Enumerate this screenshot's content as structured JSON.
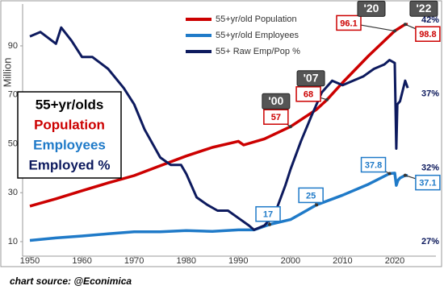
{
  "chart_data": {
    "type": "line",
    "y_label": "Million",
    "xlim": [
      1948.6,
      2027.9
    ],
    "xticks": [
      1950,
      1960,
      1970,
      1980,
      1990,
      2000,
      2010,
      2020
    ],
    "ylim": [
      4.07,
      107.1
    ],
    "yticks": [
      10,
      30,
      50,
      70,
      90
    ],
    "y2lim": [
      26.02,
      43.09
    ],
    "y2ticks": [
      {
        "value": 27,
        "label": "27%"
      },
      {
        "value": 32,
        "label": "32%"
      },
      {
        "value": 37,
        "label": "37%"
      },
      {
        "value": 42,
        "label": "42%"
      }
    ],
    "legend": "top",
    "series": [
      {
        "name": "55+yr/old Population",
        "color": "#cc0000",
        "x": [
          1950,
          1955,
          1960,
          1965,
          1970,
          1975,
          1980,
          1985,
          1990,
          1991,
          1995,
          2000,
          2005,
          2007,
          2010,
          2015,
          2020,
          2022,
          2022.5
        ],
        "values": [
          24.5,
          27.5,
          30.8,
          34,
          37,
          41,
          45,
          48.5,
          51,
          49.5,
          52,
          57,
          64,
          68,
          75,
          86,
          96.1,
          98.8,
          98.8
        ]
      },
      {
        "name": "55+yr/old Employees",
        "color": "#1f7ac8",
        "x": [
          1950,
          1955,
          1960,
          1965,
          1970,
          1975,
          1980,
          1985,
          1990,
          1993,
          1996,
          2000,
          2005,
          2010,
          2015,
          2019,
          2020,
          2020.3,
          2020.6,
          2021,
          2022,
          2022.5
        ],
        "values": [
          10.5,
          11.5,
          12.3,
          13.2,
          14,
          14,
          14.5,
          14.2,
          14.8,
          14.8,
          17,
          19,
          25,
          29,
          33.5,
          37.8,
          38,
          33,
          35,
          36,
          37.1,
          37
        ]
      },
      {
        "name": "55+ Raw Emp/Pop %",
        "color": "#0d1a5e",
        "axis": "y2",
        "x": [
          1950,
          1952,
          1955,
          1956,
          1958,
          1960,
          1962,
          1965,
          1968,
          1970,
          1972,
          1975,
          1977,
          1979,
          1980,
          1982,
          1984,
          1986,
          1988,
          1990,
          1992,
          1993,
          1995,
          1997,
          1999,
          2000,
          2002,
          2004,
          2006,
          2008,
          2010,
          2012,
          2014,
          2016,
          2018,
          2019,
          2020,
          2020.3,
          2020.5,
          2021,
          2022,
          2022.5
        ],
        "values": [
          40.9,
          41.2,
          40.4,
          41.5,
          40.6,
          39.5,
          39.5,
          38.7,
          37.4,
          36.3,
          34.6,
          32.7,
          32.2,
          32.2,
          31.6,
          30,
          29.5,
          29.1,
          29.1,
          28.6,
          28.1,
          27.8,
          28.1,
          28.9,
          30.8,
          31.9,
          33.8,
          35.5,
          37.1,
          37.9,
          37.6,
          37.9,
          38.2,
          38.7,
          39,
          39.3,
          39.1,
          33.3,
          36.3,
          36.5,
          37.9,
          37.4
        ]
      }
    ],
    "annotations": [
      {
        "series": 0,
        "x": 2000,
        "value": 57,
        "tag": "'00"
      },
      {
        "series": 0,
        "x": 2007,
        "value": 68,
        "tag": "'07"
      },
      {
        "series": 0,
        "x": 2020,
        "value": 96.1,
        "tag": "'20"
      },
      {
        "series": 0,
        "x": 2022,
        "value": 98.8,
        "tag": "'22"
      },
      {
        "series": 1,
        "x": 1996,
        "value": 17
      },
      {
        "series": 1,
        "x": 2005,
        "value": 25
      },
      {
        "series": 1,
        "x": 2019,
        "value": 37.8
      },
      {
        "series": 1,
        "x": 2022,
        "value": 37.1
      }
    ],
    "label_box": [
      {
        "text": "55+yr/olds",
        "color": "#000000"
      },
      {
        "text": "Population",
        "color": "#cc0000"
      },
      {
        "text": "Employees",
        "color": "#1f7ac8"
      },
      {
        "text": "Employed %",
        "color": "#0d1a5e"
      }
    ],
    "source": "chart source: @Econimica"
  }
}
